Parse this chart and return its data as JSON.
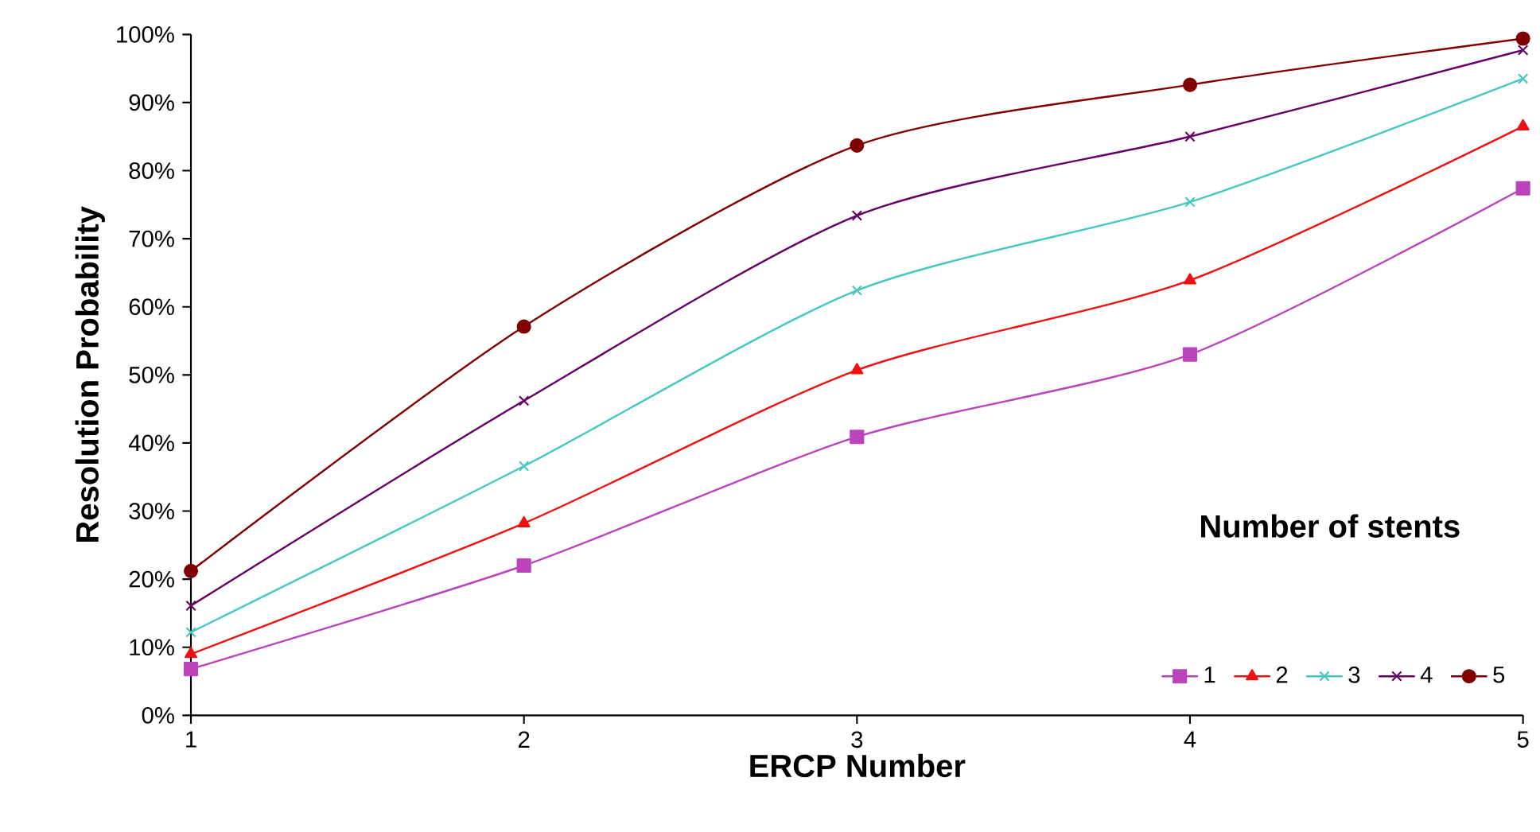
{
  "chart_data": {
    "type": "line",
    "xlabel": "ERCP Number",
    "ylabel": "Resolution Probability",
    "legend_title": "Number of stents",
    "x": [
      1,
      2,
      3,
      4,
      5
    ],
    "xlim": [
      1,
      5
    ],
    "xticks": [
      1,
      2,
      3,
      4,
      5
    ],
    "ylim": [
      0,
      100
    ],
    "yticks": [
      {
        "value": 0,
        "label": "0%"
      },
      {
        "value": 10,
        "label": "10%"
      },
      {
        "value": 20,
        "label": "20%"
      },
      {
        "value": 30,
        "label": "30%"
      },
      {
        "value": 40,
        "label": "40%"
      },
      {
        "value": 50,
        "label": "50%"
      },
      {
        "value": 60,
        "label": "60%"
      },
      {
        "value": 70,
        "label": "70%"
      },
      {
        "value": 80,
        "label": "80%"
      },
      {
        "value": 90,
        "label": "90%"
      },
      {
        "value": 100,
        "label": "100%"
      }
    ],
    "grid": false,
    "legend": "bottom right",
    "series": [
      {
        "name": "1",
        "color": "#bb44bb",
        "marker": "square",
        "values": [
          6.8,
          22.0,
          40.9,
          53.0,
          77.4
        ]
      },
      {
        "name": "2",
        "color": "#ee1111",
        "marker": "triangle",
        "values": [
          9.0,
          28.2,
          50.7,
          63.9,
          86.5
        ]
      },
      {
        "name": "3",
        "color": "#44c8c0",
        "marker": "cross",
        "values": [
          12.2,
          36.6,
          62.4,
          75.4,
          93.5
        ]
      },
      {
        "name": "4",
        "color": "#660066",
        "marker": "cross",
        "values": [
          16.1,
          46.2,
          73.4,
          85.0,
          97.7
        ]
      },
      {
        "name": "5",
        "color": "#800000",
        "marker": "circle",
        "values": [
          21.2,
          57.1,
          83.7,
          92.6,
          99.4
        ]
      }
    ]
  }
}
